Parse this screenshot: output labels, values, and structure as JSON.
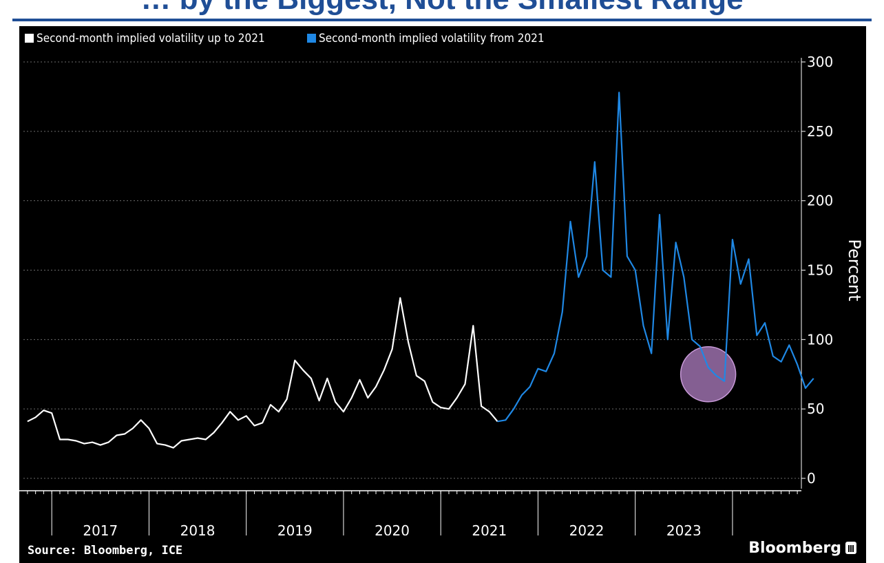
{
  "banner": {
    "text": "… by the Biggest, Not the Smallest Range",
    "color": "#1f4e96"
  },
  "legend": [
    {
      "label": "Second-month implied volatility up to 2021",
      "color": "#ffffff"
    },
    {
      "label": "Second-month implied volatility from 2021",
      "color": "#1f88e5"
    }
  ],
  "footer": {
    "source": "Source: Bloomberg, ICE",
    "brand": "Bloomberg"
  },
  "chart_data": {
    "type": "line",
    "ylabel": "Percent",
    "ylim": [
      0,
      300
    ],
    "yticks": [
      0,
      50,
      100,
      150,
      200,
      250,
      300
    ],
    "y_axis_position": "right",
    "xlabels": [
      "2017",
      "2018",
      "2019",
      "2020",
      "2021",
      "2022",
      "2023"
    ],
    "grid": "horizontal-dotted",
    "highlight": {
      "shape": "circle",
      "color": "#b07fc3",
      "center": {
        "x": "2023-10",
        "y": 75
      }
    },
    "series": [
      {
        "name": "Second-month implied volatility up to 2021",
        "color": "#ffffff",
        "points": [
          [
            "2016-10",
            41
          ],
          [
            "2016-11",
            44
          ],
          [
            "2016-12",
            49
          ],
          [
            "2017-01",
            47
          ],
          [
            "2017-02",
            28
          ],
          [
            "2017-03",
            28
          ],
          [
            "2017-04",
            27
          ],
          [
            "2017-05",
            25
          ],
          [
            "2017-06",
            26
          ],
          [
            "2017-07",
            24
          ],
          [
            "2017-08",
            26
          ],
          [
            "2017-09",
            31
          ],
          [
            "2017-10",
            32
          ],
          [
            "2017-11",
            36
          ],
          [
            "2017-12",
            42
          ],
          [
            "2018-01",
            36
          ],
          [
            "2018-02",
            25
          ],
          [
            "2018-03",
            24
          ],
          [
            "2018-04",
            22
          ],
          [
            "2018-05",
            27
          ],
          [
            "2018-06",
            28
          ],
          [
            "2018-07",
            29
          ],
          [
            "2018-08",
            28
          ],
          [
            "2018-09",
            33
          ],
          [
            "2018-10",
            40
          ],
          [
            "2018-11",
            48
          ],
          [
            "2018-12",
            42
          ],
          [
            "2019-01",
            45
          ],
          [
            "2019-02",
            38
          ],
          [
            "2019-03",
            40
          ],
          [
            "2019-04",
            53
          ],
          [
            "2019-05",
            48
          ],
          [
            "2019-06",
            57
          ],
          [
            "2019-07",
            85
          ],
          [
            "2019-08",
            78
          ],
          [
            "2019-09",
            72
          ],
          [
            "2019-10",
            56
          ],
          [
            "2019-11",
            72
          ],
          [
            "2019-12",
            55
          ],
          [
            "2020-01",
            48
          ],
          [
            "2020-02",
            58
          ],
          [
            "2020-03",
            71
          ],
          [
            "2020-04",
            58
          ],
          [
            "2020-05",
            66
          ],
          [
            "2020-06",
            78
          ],
          [
            "2020-07",
            93
          ],
          [
            "2020-08",
            130
          ],
          [
            "2020-09",
            98
          ],
          [
            "2020-10",
            74
          ],
          [
            "2020-11",
            70
          ],
          [
            "2020-12",
            55
          ],
          [
            "2021-01",
            51
          ],
          [
            "2021-02",
            50
          ],
          [
            "2021-03",
            58
          ],
          [
            "2021-04",
            68
          ],
          [
            "2021-05",
            110
          ],
          [
            "2021-06",
            52
          ],
          [
            "2021-07",
            48
          ],
          [
            "2021-08",
            41
          ]
        ]
      },
      {
        "name": "Second-month implied volatility from 2021",
        "color": "#1f88e5",
        "points": [
          [
            "2021-08",
            41
          ],
          [
            "2021-09",
            42
          ],
          [
            "2021-10",
            50
          ],
          [
            "2021-11",
            60
          ],
          [
            "2021-12",
            66
          ],
          [
            "2022-01",
            79
          ],
          [
            "2022-02",
            77
          ],
          [
            "2022-03",
            90
          ],
          [
            "2022-04",
            120
          ],
          [
            "2022-05",
            185
          ],
          [
            "2022-06",
            145
          ],
          [
            "2022-07",
            160
          ],
          [
            "2022-08",
            228
          ],
          [
            "2022-09",
            150
          ],
          [
            "2022-10",
            145
          ],
          [
            "2022-11",
            278
          ],
          [
            "2022-12",
            160
          ],
          [
            "2023-01",
            150
          ],
          [
            "2023-02",
            110
          ],
          [
            "2023-03",
            90
          ],
          [
            "2023-04",
            190
          ],
          [
            "2023-05",
            100
          ],
          [
            "2023-06",
            170
          ],
          [
            "2023-07",
            145
          ],
          [
            "2023-08",
            100
          ],
          [
            "2023-09",
            95
          ],
          [
            "2023-10",
            80
          ],
          [
            "2023-11",
            74
          ],
          [
            "2023-12",
            70
          ],
          [
            "2024-01",
            172
          ],
          [
            "2024-02",
            140
          ],
          [
            "2024-03",
            158
          ],
          [
            "2024-04",
            103
          ],
          [
            "2024-05",
            112
          ],
          [
            "2024-06",
            88
          ],
          [
            "2024-07",
            84
          ],
          [
            "2024-08",
            96
          ],
          [
            "2024-09",
            82
          ],
          [
            "2024-10",
            65
          ],
          [
            "2024-11",
            72
          ]
        ]
      }
    ]
  }
}
